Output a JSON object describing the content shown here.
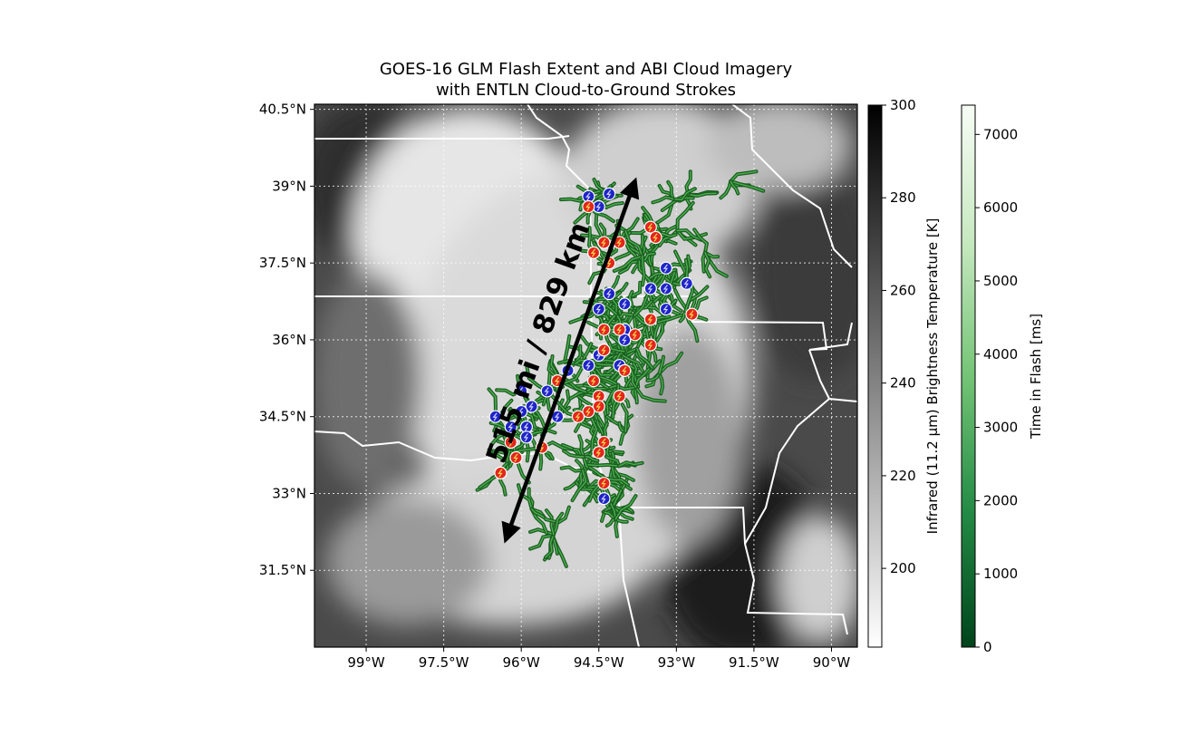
{
  "title": {
    "line1": "GOES-16 GLM Flash Extent and ABI Cloud Imagery",
    "line2": "with ENTLN Cloud-to-Ground Strokes"
  },
  "map": {
    "lon_range": [
      -100.0,
      -89.5
    ],
    "lat_range": [
      30.0,
      40.6
    ],
    "lon_ticks": [
      {
        "value": -99.0,
        "label": "99°W"
      },
      {
        "value": -97.5,
        "label": "97.5°W"
      },
      {
        "value": -96.0,
        "label": "96°W"
      },
      {
        "value": -94.5,
        "label": "94.5°W"
      },
      {
        "value": -93.0,
        "label": "93°W"
      },
      {
        "value": -91.5,
        "label": "91.5°W"
      },
      {
        "value": -90.0,
        "label": "90°W"
      }
    ],
    "lat_ticks": [
      {
        "value": 40.5,
        "label": "40.5°N"
      },
      {
        "value": 39.0,
        "label": "39°N"
      },
      {
        "value": 37.5,
        "label": "37.5°N"
      },
      {
        "value": 36.0,
        "label": "36°N"
      },
      {
        "value": 34.5,
        "label": "34.5°N"
      },
      {
        "value": 33.0,
        "label": "33°N"
      },
      {
        "value": 31.5,
        "label": "31.5°N"
      }
    ],
    "gridlines": true,
    "distance_arrow": {
      "start": {
        "lon": -96.3,
        "lat": 32.1
      },
      "end": {
        "lon": -93.8,
        "lat": 39.1
      },
      "label": "515 mi / 829 km"
    },
    "colors": {
      "flash_extent": "#2e7d32",
      "positive_stroke": "#e3261b",
      "negative_stroke": "#1f24c8",
      "borders": "#ffffff"
    },
    "negative_strokes": [
      {
        "lon": -94.7,
        "lat": 38.8
      },
      {
        "lon": -94.3,
        "lat": 38.85
      },
      {
        "lon": -94.5,
        "lat": 38.6
      },
      {
        "lon": -93.2,
        "lat": 37.4
      },
      {
        "lon": -93.5,
        "lat": 37.0
      },
      {
        "lon": -93.2,
        "lat": 37.0
      },
      {
        "lon": -92.8,
        "lat": 37.1
      },
      {
        "lon": -94.3,
        "lat": 36.9
      },
      {
        "lon": -94.0,
        "lat": 36.7
      },
      {
        "lon": -93.2,
        "lat": 36.6
      },
      {
        "lon": -94.5,
        "lat": 36.6
      },
      {
        "lon": -94.0,
        "lat": 36.2
      },
      {
        "lon": -94.0,
        "lat": 36.0
      },
      {
        "lon": -94.5,
        "lat": 35.7
      },
      {
        "lon": -94.7,
        "lat": 35.5
      },
      {
        "lon": -94.1,
        "lat": 35.5
      },
      {
        "lon": -95.1,
        "lat": 35.4
      },
      {
        "lon": -96.0,
        "lat": 35.0
      },
      {
        "lon": -95.5,
        "lat": 35.0
      },
      {
        "lon": -95.8,
        "lat": 34.7
      },
      {
        "lon": -96.0,
        "lat": 34.6
      },
      {
        "lon": -95.3,
        "lat": 34.5
      },
      {
        "lon": -96.5,
        "lat": 34.5
      },
      {
        "lon": -96.2,
        "lat": 34.3
      },
      {
        "lon": -95.9,
        "lat": 34.3
      },
      {
        "lon": -95.9,
        "lat": 34.1
      },
      {
        "lon": -94.4,
        "lat": 32.9
      }
    ],
    "positive_strokes": [
      {
        "lon": -94.7,
        "lat": 38.6
      },
      {
        "lon": -93.5,
        "lat": 38.2
      },
      {
        "lon": -93.4,
        "lat": 38.0
      },
      {
        "lon": -94.4,
        "lat": 37.9
      },
      {
        "lon": -94.1,
        "lat": 37.9
      },
      {
        "lon": -94.6,
        "lat": 37.7
      },
      {
        "lon": -94.3,
        "lat": 37.5
      },
      {
        "lon": -92.7,
        "lat": 36.5
      },
      {
        "lon": -93.5,
        "lat": 36.4
      },
      {
        "lon": -94.4,
        "lat": 36.2
      },
      {
        "lon": -94.1,
        "lat": 36.2
      },
      {
        "lon": -93.8,
        "lat": 36.1
      },
      {
        "lon": -93.5,
        "lat": 35.9
      },
      {
        "lon": -94.4,
        "lat": 35.8
      },
      {
        "lon": -94.0,
        "lat": 35.4
      },
      {
        "lon": -95.3,
        "lat": 35.2
      },
      {
        "lon": -94.6,
        "lat": 35.2
      },
      {
        "lon": -94.5,
        "lat": 34.9
      },
      {
        "lon": -94.1,
        "lat": 34.9
      },
      {
        "lon": -94.5,
        "lat": 34.7
      },
      {
        "lon": -94.7,
        "lat": 34.6
      },
      {
        "lon": -94.9,
        "lat": 34.5
      },
      {
        "lon": -95.6,
        "lat": 33.9
      },
      {
        "lon": -96.2,
        "lat": 34.0
      },
      {
        "lon": -96.1,
        "lat": 33.7
      },
      {
        "lon": -94.4,
        "lat": 34.0
      },
      {
        "lon": -94.5,
        "lat": 33.8
      },
      {
        "lon": -96.4,
        "lat": 33.4
      },
      {
        "lon": -94.4,
        "lat": 33.2
      }
    ]
  },
  "colorbar_brightness": {
    "label": "Infrared (11.2 µm) Brightness Temperature [K]",
    "range": [
      183,
      300
    ],
    "ticks": [
      {
        "value": 300,
        "label": "300"
      },
      {
        "value": 280,
        "label": "280"
      },
      {
        "value": 260,
        "label": "260"
      },
      {
        "value": 240,
        "label": "240"
      },
      {
        "value": 220,
        "label": "220"
      },
      {
        "value": 200,
        "label": "200"
      }
    ],
    "color_high": "#000000",
    "color_low": "#ffffff"
  },
  "colorbar_time": {
    "label": "Time in Flash [ms]",
    "range": [
      0,
      7400
    ],
    "ticks": [
      {
        "value": 7000,
        "label": "7000"
      },
      {
        "value": 6000,
        "label": "6000"
      },
      {
        "value": 5000,
        "label": "5000"
      },
      {
        "value": 4000,
        "label": "4000"
      },
      {
        "value": 3000,
        "label": "3000"
      },
      {
        "value": 2000,
        "label": "2000"
      },
      {
        "value": 1000,
        "label": "1000"
      },
      {
        "value": 0,
        "label": "0"
      }
    ],
    "color_high": "#f7fcf5",
    "color_low": "#00441b"
  }
}
